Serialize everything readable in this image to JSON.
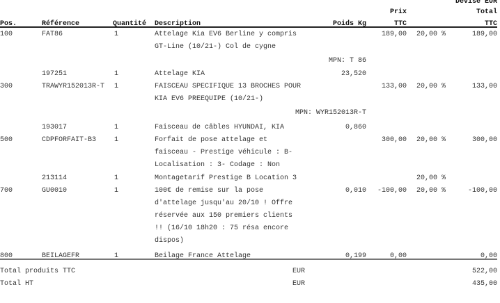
{
  "currency_label": "Devise EUR",
  "headers": {
    "pos": "Pos.",
    "reference": "Référence",
    "quantity": "Quantité",
    "description": "Description",
    "weight": "Poids Kg",
    "price_top": "Prix",
    "price_bottom": "TTC",
    "total_top": "Total",
    "total_bottom": "TTC"
  },
  "rows": [
    {
      "pos": "100",
      "ref": "FAT86",
      "qty": "1",
      "desc": [
        "Attelage Kia EV6 Berline y compris",
        "GT-Line (10/21-) Col de cygne"
      ],
      "weight": "",
      "price": "189,00",
      "vat": "20,00 %",
      "total": "189,00",
      "mpn": "MPN: T 86"
    },
    {
      "pos": "",
      "ref": "197251",
      "qty": "1",
      "desc": [
        "Attelage KIA"
      ],
      "weight": "23,520",
      "price": "",
      "vat": "",
      "total": ""
    },
    {
      "pos": "300",
      "ref": "TRAWYR152013R-T",
      "qty": "1",
      "desc": [
        "FAISCEAU SPECIFIQUE 13 BROCHES POUR",
        "KIA EV6 PREEQUIPE (10/21-)"
      ],
      "weight": "",
      "price": "133,00",
      "vat": "20,00 %",
      "total": "133,00",
      "mpn": "MPN: WYR152013R-T"
    },
    {
      "pos": "",
      "ref": "193017",
      "qty": "1",
      "desc": [
        "Faisceau de câbles HYUNDAI, KIA"
      ],
      "weight": "0,860",
      "price": "",
      "vat": "",
      "total": ""
    },
    {
      "pos": "500",
      "ref": "CDPFORFAIT-B3",
      "qty": "1",
      "desc": [
        "Forfait de pose attelage et",
        "faisceau - Prestige véhicule : B-",
        "Localisation : 3- Codage : Non"
      ],
      "weight": "",
      "price": "300,00",
      "vat": "20,00 %",
      "total": "300,00"
    },
    {
      "pos": "",
      "ref": "213114",
      "qty": "1",
      "desc": [
        "Montagetarif Prestige B Location 3"
      ],
      "weight": "",
      "price": "",
      "vat": "20,00 %",
      "total": ""
    },
    {
      "pos": "700",
      "ref": "GU0010",
      "qty": "1",
      "desc": [
        "100€ de remise sur la pose",
        "d'attelage jusqu'au 20/10 ! Offre",
        "réservée aux 150 premiers clients",
        "!! (16/10 18h20 : 75 résa encore",
        "dispos)"
      ],
      "weight": "0,010",
      "price": "-100,00",
      "vat": "20,00 %",
      "total": "-100,00"
    },
    {
      "pos": "800",
      "ref": "BEILAGEFR",
      "qty": "1",
      "desc": [
        "Beilage France Attelage"
      ],
      "weight": "0,199",
      "price": "0,00",
      "vat": "",
      "total": "0,00"
    }
  ],
  "totals": [
    {
      "label": "Total produits TTC",
      "currency": "EUR",
      "value": "522,00"
    },
    {
      "label": "Total HT",
      "currency": "EUR",
      "value": "435,00"
    }
  ]
}
